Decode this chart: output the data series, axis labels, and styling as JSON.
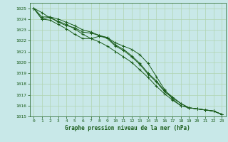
{
  "title": "Graphe pression niveau de la mer (hPa)",
  "background_color": "#c8e8e8",
  "grid_color": "#b0d4b0",
  "line_color": "#1a5c1a",
  "xlim": [
    -0.5,
    23.5
  ],
  "ylim": [
    1015,
    1025.5
  ],
  "yticks": [
    1015,
    1016,
    1017,
    1018,
    1019,
    1020,
    1021,
    1022,
    1023,
    1024,
    1025
  ],
  "xticks": [
    0,
    1,
    2,
    3,
    4,
    5,
    6,
    7,
    8,
    9,
    10,
    11,
    12,
    13,
    14,
    15,
    16,
    17,
    18,
    19,
    20,
    21,
    22,
    23
  ],
  "series": [
    [
      1025.0,
      1024.6,
      1024.1,
      1023.8,
      1023.5,
      1023.1,
      1022.6,
      1022.2,
      1021.9,
      1021.5,
      1021.0,
      1020.5,
      1020.0,
      1019.3,
      1018.6,
      1017.8,
      1017.1,
      1016.5,
      1016.0,
      1015.8,
      1015.7,
      1015.6,
      1015.5,
      1015.2
    ],
    [
      1025.0,
      1024.2,
      1024.2,
      1023.7,
      1023.4,
      1023.2,
      1022.8,
      1022.7,
      1022.5,
      1022.2,
      1021.5,
      1021.1,
      1020.5,
      1019.8,
      1018.9,
      1018.2,
      1017.3,
      1016.7,
      1016.2,
      1015.8,
      1015.7,
      1015.6,
      1015.5,
      1015.2
    ],
    [
      1025.0,
      1024.0,
      1024.2,
      1024.0,
      1023.7,
      1023.4,
      1023.0,
      1022.8,
      1022.5,
      1022.3,
      1021.6,
      1021.2,
      1020.6,
      1019.9,
      1019.0,
      1018.3,
      1017.4,
      1016.8,
      1016.2,
      1015.8,
      1015.7,
      1015.6,
      1015.5,
      1015.2
    ],
    [
      1025.0,
      1024.0,
      1023.9,
      1023.5,
      1023.1,
      1022.6,
      1022.2,
      1022.2,
      1022.4,
      1022.3,
      1021.8,
      1021.5,
      1021.2,
      1020.7,
      1019.9,
      1018.7,
      1017.5,
      1016.6,
      1016.0,
      1015.8,
      1015.7,
      1015.6,
      1015.5,
      1015.2
    ]
  ]
}
